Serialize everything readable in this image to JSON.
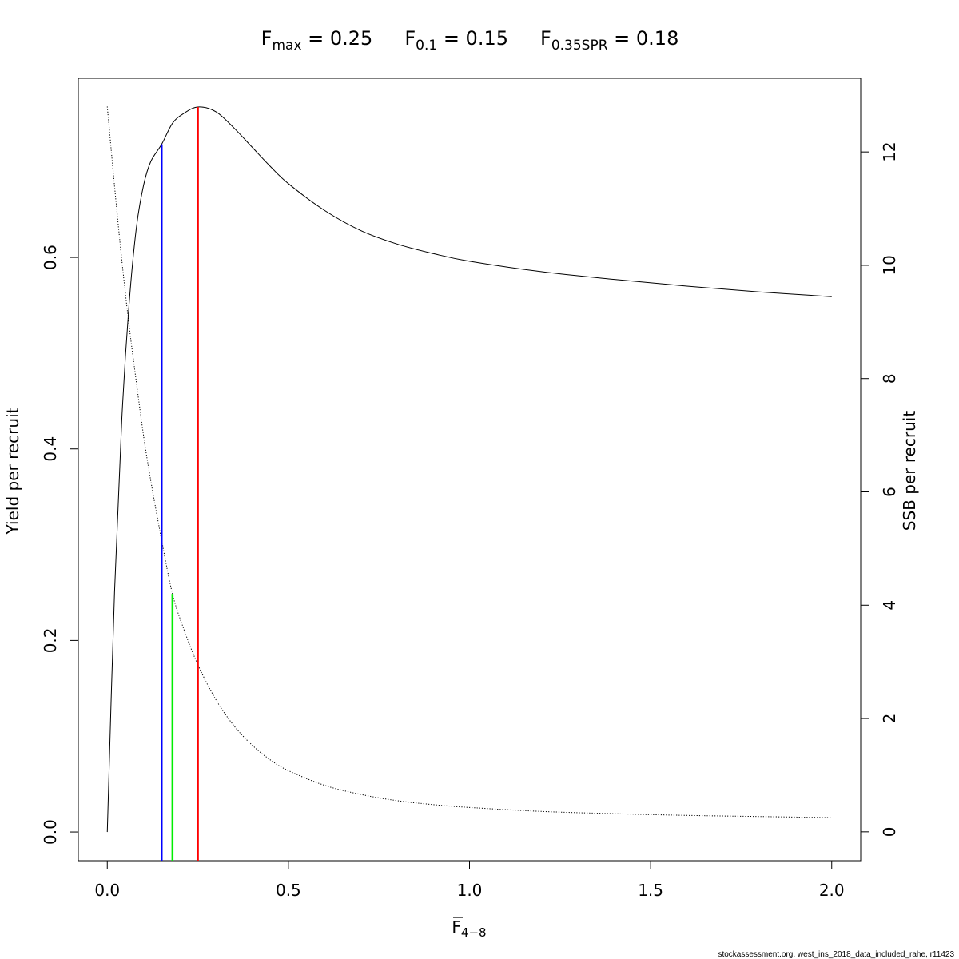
{
  "chart_data": {
    "type": "line",
    "title_parts": [
      {
        "base": "F",
        "sub": "max",
        "eq": " = ",
        "value": "0.25"
      },
      {
        "base": "F",
        "sub": "0.1",
        "eq": " = ",
        "value": "0.15"
      },
      {
        "base": "F",
        "sub": "0.35SPR",
        "eq": " = ",
        "value": "0.18"
      }
    ],
    "xlabel": {
      "base": "F",
      "sub": "4−8"
    },
    "ylabel_left": "Yield per recruit",
    "ylabel_right": "SSB per recruit",
    "xlim": [
      -0.08,
      2.08
    ],
    "ylim_left": [
      -0.03,
      0.787
    ],
    "ylim_right": [
      -0.51,
      13.3
    ],
    "x_ticks": [
      "0.0",
      "0.5",
      "1.0",
      "1.5",
      "2.0"
    ],
    "y_left_ticks": [
      "0.0",
      "0.2",
      "0.4",
      "0.6"
    ],
    "y_right_ticks": [
      "0",
      "2",
      "4",
      "6",
      "8",
      "10",
      "12"
    ],
    "grid": false,
    "series": [
      {
        "axis": "left",
        "style": "solid",
        "x": [
          0,
          0.02,
          0.04,
          0.06,
          0.08,
          0.1,
          0.12,
          0.15,
          0.18,
          0.21,
          0.25,
          0.3,
          0.35,
          0.4,
          0.45,
          0.5,
          0.6,
          0.7,
          0.8,
          0.9,
          1.0,
          1.2,
          1.4,
          1.6,
          1.8,
          2.0
        ],
        "y": [
          0,
          0.25,
          0.43,
          0.55,
          0.63,
          0.675,
          0.7,
          0.718,
          0.74,
          0.75,
          0.757,
          0.752,
          0.735,
          0.715,
          0.695,
          0.677,
          0.649,
          0.628,
          0.614,
          0.604,
          0.596,
          0.585,
          0.577,
          0.57,
          0.564,
          0.559
        ]
      },
      {
        "axis": "right",
        "style": "dotted",
        "x": [
          0,
          0.02,
          0.04,
          0.06,
          0.08,
          0.1,
          0.12,
          0.15,
          0.18,
          0.21,
          0.25,
          0.3,
          0.35,
          0.4,
          0.45,
          0.5,
          0.6,
          0.7,
          0.8,
          0.9,
          1.0,
          1.2,
          1.4,
          1.6,
          1.8,
          2.0
        ],
        "y": [
          12.8,
          11.4,
          10.1,
          8.95,
          7.95,
          7.0,
          6.2,
          5.15,
          4.2,
          3.6,
          2.95,
          2.33,
          1.87,
          1.53,
          1.27,
          1.08,
          0.82,
          0.66,
          0.55,
          0.48,
          0.43,
          0.36,
          0.32,
          0.29,
          0.27,
          0.25
        ]
      }
    ],
    "reference_lines": [
      {
        "x": 0.15,
        "axis": "left",
        "y": 0.718,
        "color": "#0000ff"
      },
      {
        "x": 0.18,
        "axis": "right",
        "y": 4.2,
        "color": "#00ee00"
      },
      {
        "x": 0.25,
        "axis": "left",
        "y": 0.757,
        "color": "#ff0000"
      }
    ],
    "credit": "stockassessment.org, west_ins_2018_data_included_rahe, r11423"
  }
}
